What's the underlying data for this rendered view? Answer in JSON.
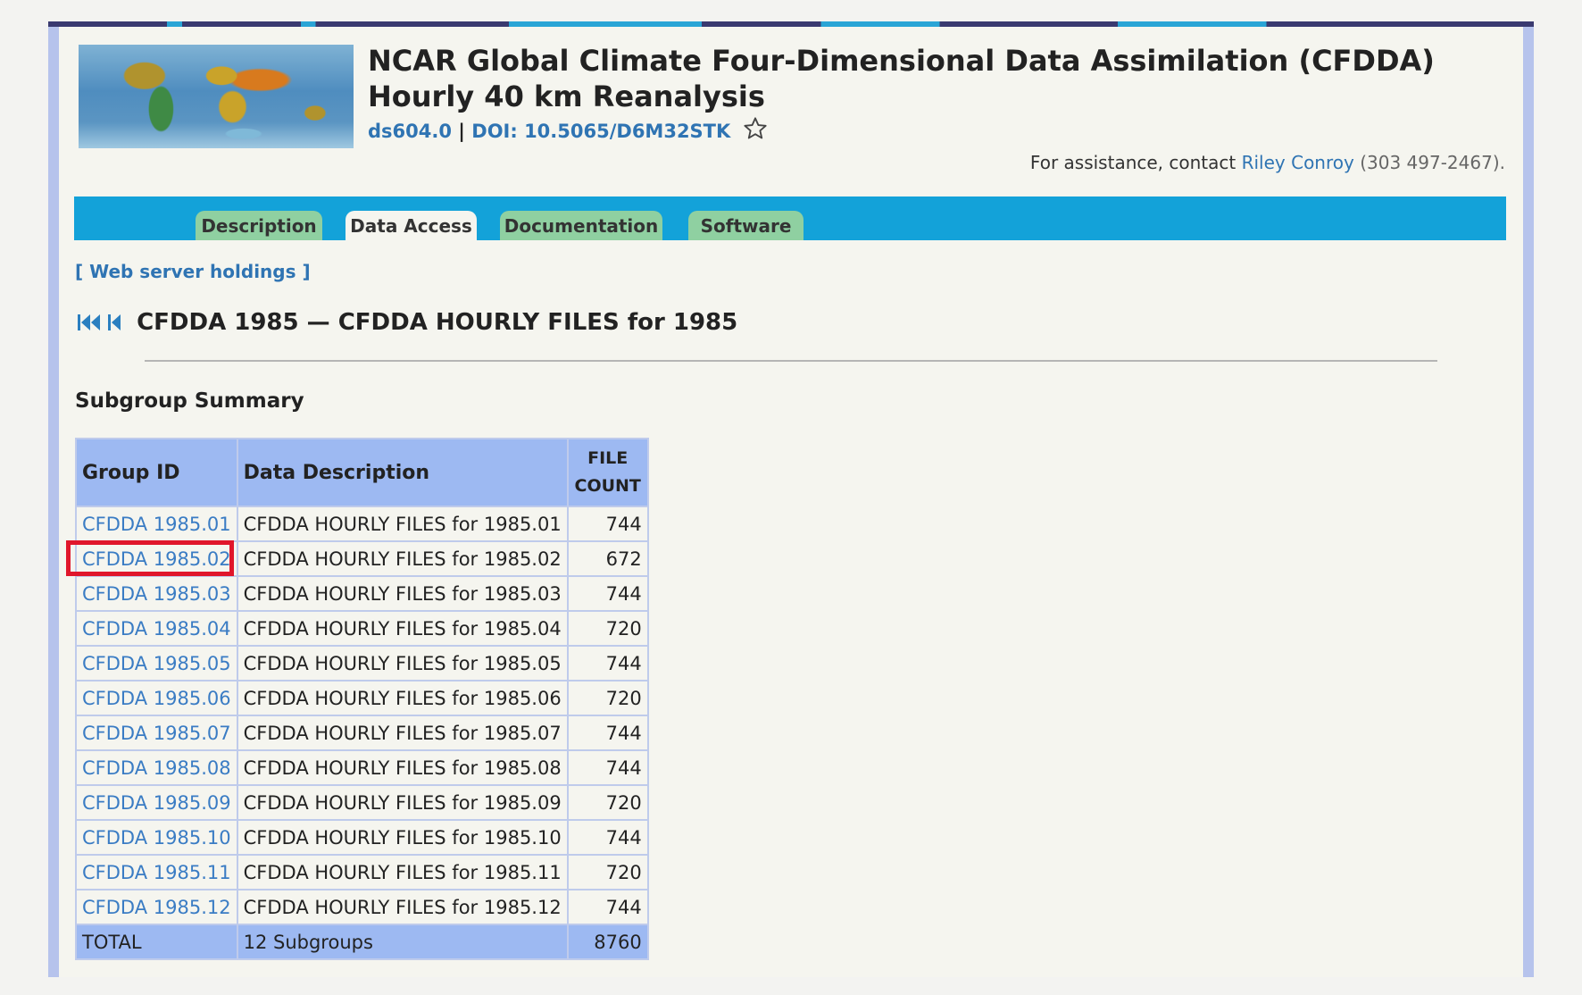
{
  "header": {
    "title": "NCAR Global Climate Four-Dimensional Data Assimilation (CFDDA) Hourly 40 km Reanalysis",
    "dataset_id": "ds604.0",
    "separator": "|",
    "doi": "DOI: 10.5065/D6M32STK"
  },
  "assistance": {
    "prefix": "For assistance, contact",
    "contact_name": "Riley Conroy",
    "phone": "(303 497-2467)."
  },
  "tabs": [
    {
      "label": "Description"
    },
    {
      "label": "Data Access"
    },
    {
      "label": "Documentation"
    },
    {
      "label": "Software"
    }
  ],
  "holdings_link": "[ Web server holdings ]",
  "group_heading": "CFDDA 1985 — CFDDA HOURLY FILES for 1985",
  "summary_label": "Subgroup Summary",
  "table": {
    "headers": {
      "group_id": "Group ID",
      "description": "Data Description",
      "file_count_1": "FILE",
      "file_count_2": "COUNT"
    },
    "rows": [
      {
        "id": "CFDDA 1985.01",
        "desc": "CFDDA HOURLY FILES for 1985.01",
        "count": "744"
      },
      {
        "id": "CFDDA 1985.02",
        "desc": "CFDDA HOURLY FILES for 1985.02",
        "count": "672"
      },
      {
        "id": "CFDDA 1985.03",
        "desc": "CFDDA HOURLY FILES for 1985.03",
        "count": "744"
      },
      {
        "id": "CFDDA 1985.04",
        "desc": "CFDDA HOURLY FILES for 1985.04",
        "count": "720"
      },
      {
        "id": "CFDDA 1985.05",
        "desc": "CFDDA HOURLY FILES for 1985.05",
        "count": "744"
      },
      {
        "id": "CFDDA 1985.06",
        "desc": "CFDDA HOURLY FILES for 1985.06",
        "count": "720"
      },
      {
        "id": "CFDDA 1985.07",
        "desc": "CFDDA HOURLY FILES for 1985.07",
        "count": "744"
      },
      {
        "id": "CFDDA 1985.08",
        "desc": "CFDDA HOURLY FILES for 1985.08",
        "count": "744"
      },
      {
        "id": "CFDDA 1985.09",
        "desc": "CFDDA HOURLY FILES for 1985.09",
        "count": "720"
      },
      {
        "id": "CFDDA 1985.10",
        "desc": "CFDDA HOURLY FILES for 1985.10",
        "count": "744"
      },
      {
        "id": "CFDDA 1985.11",
        "desc": "CFDDA HOURLY FILES for 1985.11",
        "count": "720"
      },
      {
        "id": "CFDDA 1985.12",
        "desc": "CFDDA HOURLY FILES for 1985.12",
        "count": "744"
      }
    ],
    "total": {
      "label": "TOTAL",
      "desc": "12 Subgroups",
      "count": "8760"
    }
  },
  "colors": {
    "link": "#2f74b3",
    "navbar": "#13a2d9",
    "tab": "#8fd0a1",
    "table_header": "#9db9f2",
    "highlight": "#e0162b"
  },
  "icons": [
    "world-map-logo",
    "star-icon",
    "first-page-icon",
    "previous-page-icon"
  ]
}
